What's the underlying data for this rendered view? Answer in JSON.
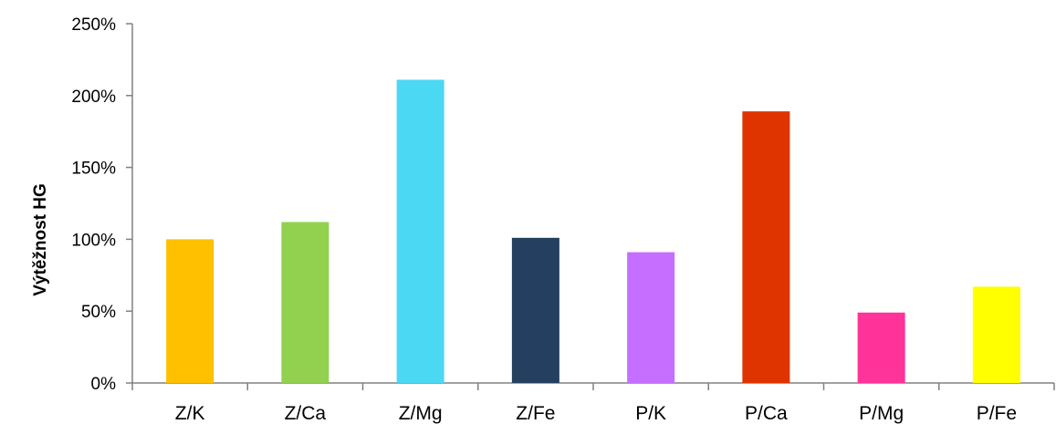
{
  "chart_data": {
    "type": "bar",
    "categories": [
      "Z/K",
      "Z/Ca",
      "Z/Mg",
      "Z/Fe",
      "P/K",
      "P/Ca",
      "P/Mg",
      "P/Fe"
    ],
    "values": [
      100,
      112,
      211,
      101,
      91,
      189,
      49,
      67
    ],
    "value_unit": "%",
    "colors": [
      "#FFC000",
      "#92D050",
      "#4BD8F2",
      "#243F60",
      "#C66EFF",
      "#E03400",
      "#FF3399",
      "#FFFF00"
    ],
    "title": "",
    "xlabel": "",
    "ylabel": "Výtěžnost HG",
    "ylim": [
      0,
      250
    ],
    "yticks": [
      0,
      50,
      100,
      150,
      200,
      250
    ],
    "ytick_labels": [
      "0%",
      "50%",
      "100%",
      "150%",
      "200%",
      "250%"
    ],
    "grid": false,
    "legend": "none"
  }
}
